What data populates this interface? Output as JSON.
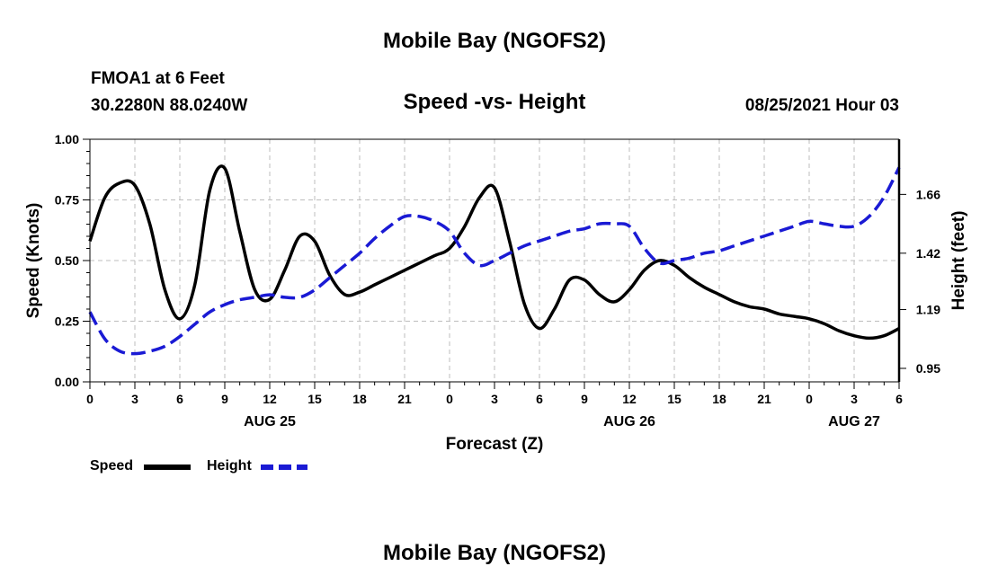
{
  "title_top": "Mobile Bay (NGOFS2)",
  "title_bottom": "Mobile Bay (NGOFS2)",
  "station": "FMOA1 at 6 Feet",
  "coords": "30.2280N  88.0240W",
  "run": "08/25/2021 Hour 03",
  "colors": {
    "speed": "#000000",
    "height": "#1a1ad4",
    "grid": "#bdbdbd"
  },
  "chart_data": {
    "type": "line",
    "title": "Speed -vs- Height",
    "xlabel": "Forecast (Z)",
    "ylabel": "Speed (Knots)",
    "y2label": "Height (feet)",
    "xlim": [
      0,
      54
    ],
    "ylim": [
      0,
      1.0
    ],
    "y2lim": [
      0.895,
      1.885
    ],
    "x_ticks": [
      0,
      3,
      6,
      9,
      12,
      15,
      18,
      21,
      24,
      27,
      30,
      33,
      36,
      39,
      42,
      45,
      48,
      51,
      54
    ],
    "x_tick_labels": [
      "0",
      "3",
      "6",
      "9",
      "12",
      "15",
      "18",
      "21",
      "0",
      "3",
      "6",
      "9",
      "12",
      "15",
      "18",
      "21",
      "0",
      "3",
      "6"
    ],
    "y_ticks": [
      0.0,
      0.25,
      0.5,
      0.75,
      1.0
    ],
    "y_tick_labels": [
      "0.00",
      "0.25",
      "0.50",
      "0.75",
      "1.00"
    ],
    "y2_ticks": [
      0.95,
      1.19,
      1.42,
      1.66
    ],
    "y2_tick_labels": [
      "0.95",
      "1.19",
      "1.42",
      "1.66"
    ],
    "date_labels": [
      {
        "x": 12,
        "label": "AUG 25"
      },
      {
        "x": 36,
        "label": "AUG 26"
      },
      {
        "x": 51,
        "label": "AUG 27"
      }
    ],
    "grid": true,
    "legend_position": "bottom-left",
    "series": [
      {
        "name": "Speed",
        "axis": "left",
        "style": "solid",
        "x": [
          0,
          1,
          2,
          3,
          4,
          5,
          6,
          7,
          8,
          9,
          10,
          11,
          12,
          13,
          14,
          15,
          16,
          17,
          18,
          19,
          20,
          21,
          22,
          23,
          24,
          25,
          26,
          27,
          28,
          29,
          30,
          31,
          32,
          33,
          34,
          35,
          36,
          37,
          38,
          39,
          40,
          41,
          42,
          43,
          44,
          45,
          46,
          47,
          48,
          49,
          50,
          51,
          52,
          53,
          54
        ],
        "values": [
          0.58,
          0.76,
          0.82,
          0.81,
          0.65,
          0.38,
          0.26,
          0.4,
          0.79,
          0.88,
          0.62,
          0.38,
          0.34,
          0.46,
          0.6,
          0.58,
          0.44,
          0.36,
          0.37,
          0.4,
          0.43,
          0.46,
          0.49,
          0.52,
          0.55,
          0.64,
          0.76,
          0.8,
          0.58,
          0.32,
          0.22,
          0.3,
          0.42,
          0.42,
          0.36,
          0.33,
          0.38,
          0.46,
          0.5,
          0.48,
          0.43,
          0.39,
          0.36,
          0.33,
          0.31,
          0.3,
          0.28,
          0.27,
          0.26,
          0.24,
          0.21,
          0.19,
          0.18,
          0.19,
          0.22
        ]
      },
      {
        "name": "Height",
        "axis": "right",
        "style": "dashed",
        "x": [
          0,
          1,
          2,
          3,
          4,
          5,
          6,
          7,
          8,
          9,
          10,
          11,
          12,
          13,
          14,
          15,
          16,
          17,
          18,
          19,
          20,
          21,
          22,
          23,
          24,
          25,
          26,
          27,
          28,
          29,
          30,
          31,
          32,
          33,
          34,
          35,
          36,
          37,
          38,
          39,
          40,
          41,
          42,
          43,
          44,
          45,
          46,
          47,
          48,
          49,
          50,
          51,
          52,
          53,
          54
        ],
        "values": [
          1.18,
          1.07,
          1.02,
          1.01,
          1.02,
          1.04,
          1.08,
          1.13,
          1.18,
          1.21,
          1.23,
          1.24,
          1.25,
          1.24,
          1.24,
          1.27,
          1.32,
          1.37,
          1.42,
          1.48,
          1.53,
          1.57,
          1.57,
          1.55,
          1.51,
          1.42,
          1.37,
          1.39,
          1.42,
          1.45,
          1.47,
          1.49,
          1.51,
          1.52,
          1.54,
          1.54,
          1.53,
          1.44,
          1.38,
          1.39,
          1.4,
          1.42,
          1.43,
          1.45,
          1.47,
          1.49,
          1.51,
          1.53,
          1.55,
          1.54,
          1.53,
          1.53,
          1.57,
          1.65,
          1.77
        ]
      }
    ]
  }
}
